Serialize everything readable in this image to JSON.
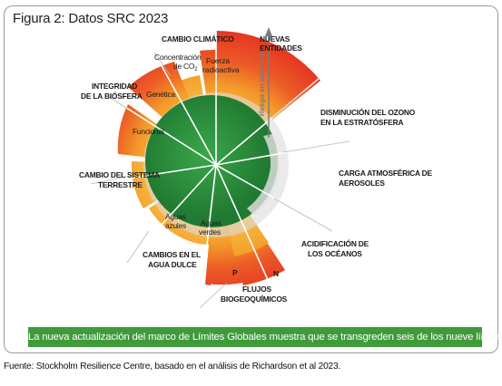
{
  "figure": {
    "title": "Figura 2: Datos SRC 2023"
  },
  "labels": {
    "cambio_climatico": "CAMBIO CLIMÁTICO",
    "nuevas_entidades_1": "NUEVAS",
    "nuevas_entidades_2": "ENTIDADES",
    "ozono_1": "DISMINUCIÓN DEL OZONO",
    "ozono_2": "EN LA ESTRATÓSFERA",
    "aerosoles_1": "CARGA ATMOSFÉRICA DE",
    "aerosoles_2": "AEROSOLES",
    "acidificacion_1": "ACIDIFICACIÓN DE",
    "acidificacion_2": "LOS OCÉANOS",
    "flujos_1": "FLUJOS",
    "flujos_2": "BIOGEOQUÍMICOS",
    "agua_1": "CAMBIOS EN EL",
    "agua_2": "AGUA DULCE",
    "sistema_1": "CAMBIO DEL SISTEMA",
    "sistema_2": "TERRESTRE",
    "biosfera_1": "INTEGRIDAD",
    "biosfera_2": "DE LA BIÓSFERA"
  },
  "sublabels": {
    "co2_1": "Concentración",
    "co2_2": "de CO",
    "co2_sub": "2",
    "fuerza_1": "Fuerza",
    "fuerza_2": "radioactiva",
    "genetica": "Genética",
    "funcional": "Funcional",
    "aguas_azules_1": "Aguas",
    "aguas_azules_2": "azules",
    "aguas_verdes_1": "Aguas",
    "aguas_verdes_2": "verdes",
    "p": "P",
    "n": "N"
  },
  "axis": {
    "risk": "riesgo en aumento"
  },
  "colors": {
    "safe_zone": "#2e8b3e",
    "high_risk": "#e8312a",
    "increasing_risk": "#f4a126",
    "banner": "#3f9a3a"
  },
  "banner": {
    "text": "La nueva actualización del marco de Límites Globales muestra que se transgreden seis de los nueve límites."
  },
  "source": {
    "text": "Fuente: Stockholm Resilience Centre, basado en el análisis de Richardson et al 2023."
  }
}
